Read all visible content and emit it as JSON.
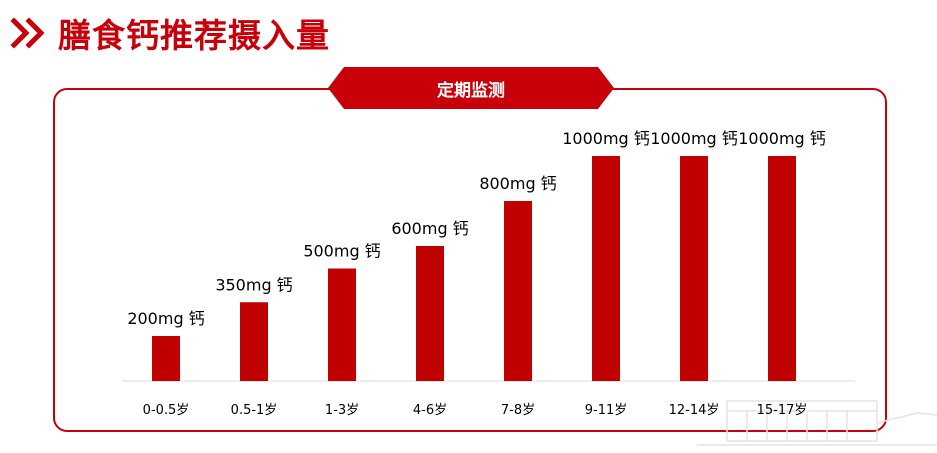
{
  "header": {
    "title": "膳食钙推荐摄入量",
    "accent_color": "#c8000a",
    "icon": "double-chevron-right-icon"
  },
  "panel": {
    "badge_label": "定期监测"
  },
  "chart_data": {
    "type": "bar",
    "categories": [
      "0-0.5岁",
      "0.5-1岁",
      "1-3岁",
      "4-6岁",
      "7-8岁",
      "9-11岁",
      "12-14岁",
      "15-17岁"
    ],
    "values": [
      200,
      350,
      500,
      600,
      800,
      1000,
      1000,
      1000
    ],
    "data_labels": [
      "200mg 钙",
      "350mg 钙",
      "500mg 钙",
      "600mg 钙",
      "800mg 钙",
      "1000mg 钙",
      "1000mg 钙",
      "1000mg 钙"
    ],
    "unit": "mg",
    "bar_color": "#c00000",
    "ylim": [
      0,
      1000
    ],
    "grid": false,
    "legend": "none"
  }
}
